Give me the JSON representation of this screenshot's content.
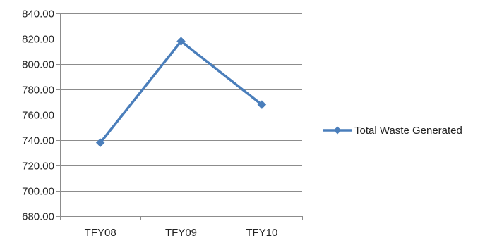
{
  "chart_data": {
    "type": "line",
    "title": "",
    "xlabel": "",
    "ylabel": "",
    "categories": [
      "TFY08",
      "TFY09",
      "TFY10"
    ],
    "series": [
      {
        "name": "Total Waste Generated",
        "values": [
          738,
          818,
          768
        ],
        "color": "#4a7ebb",
        "marker": "diamond"
      }
    ],
    "ylim": [
      680,
      840
    ],
    "y_ticks": [
      680,
      700,
      720,
      740,
      760,
      780,
      800,
      820,
      840
    ],
    "y_tick_labels": [
      "680.00",
      "700.00",
      "720.00",
      "740.00",
      "760.00",
      "780.00",
      "800.00",
      "820.00",
      "840.00"
    ],
    "grid": "horizontal",
    "legend_position": "right"
  }
}
